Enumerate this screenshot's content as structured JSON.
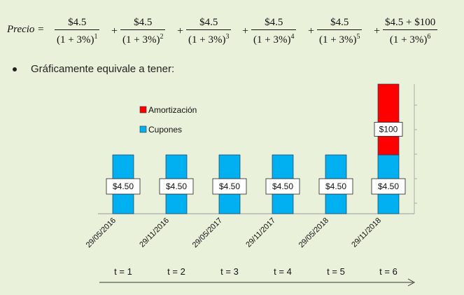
{
  "formula": {
    "lhs": "Precio =",
    "terms": [
      {
        "numerator": "$4.5",
        "denominator": "(1 + 3%)",
        "exponent": "1"
      },
      {
        "numerator": "$4.5",
        "denominator": "(1 + 3%)",
        "exponent": "2"
      },
      {
        "numerator": "$4.5",
        "denominator": "(1 + 3%)",
        "exponent": "3"
      },
      {
        "numerator": "$4.5",
        "denominator": "(1 + 3%)",
        "exponent": "4"
      },
      {
        "numerator": "$4.5",
        "denominator": "(1 + 3%)",
        "exponent": "5"
      },
      {
        "numerator": "$4.5 + $100",
        "denominator": "(1 + 3%)",
        "exponent": "6"
      }
    ],
    "plus": "+"
  },
  "bullet": "Gráficamente equivale a tener:",
  "colors": {
    "cupones": "#00B0F0",
    "amortizacion": "#FF0000"
  },
  "chart_data": {
    "type": "bar",
    "stacked": true,
    "categories": [
      "29/05/2016",
      "29/11/2016",
      "29/05/2017",
      "29/11/2017",
      "29/05/2018",
      "29/11/2018"
    ],
    "period_labels": [
      "t = 1",
      "t = 2",
      "t = 3",
      "t = 4",
      "t = 5",
      "t = 6"
    ],
    "series": [
      {
        "name": "Cupones",
        "values": [
          4.5,
          4.5,
          4.5,
          4.5,
          4.5,
          4.5
        ],
        "labels": [
          "$4.50",
          "$4.50",
          "$4.50",
          "$4.50",
          "$4.50",
          "$4.50"
        ]
      },
      {
        "name": "Amortización",
        "values": [
          0,
          0,
          0,
          0,
          0,
          100
        ],
        "labels": [
          "",
          "",
          "",
          "",
          "",
          "$100"
        ]
      }
    ],
    "legend_position": "top-left",
    "axis_break": true,
    "grid": false
  }
}
